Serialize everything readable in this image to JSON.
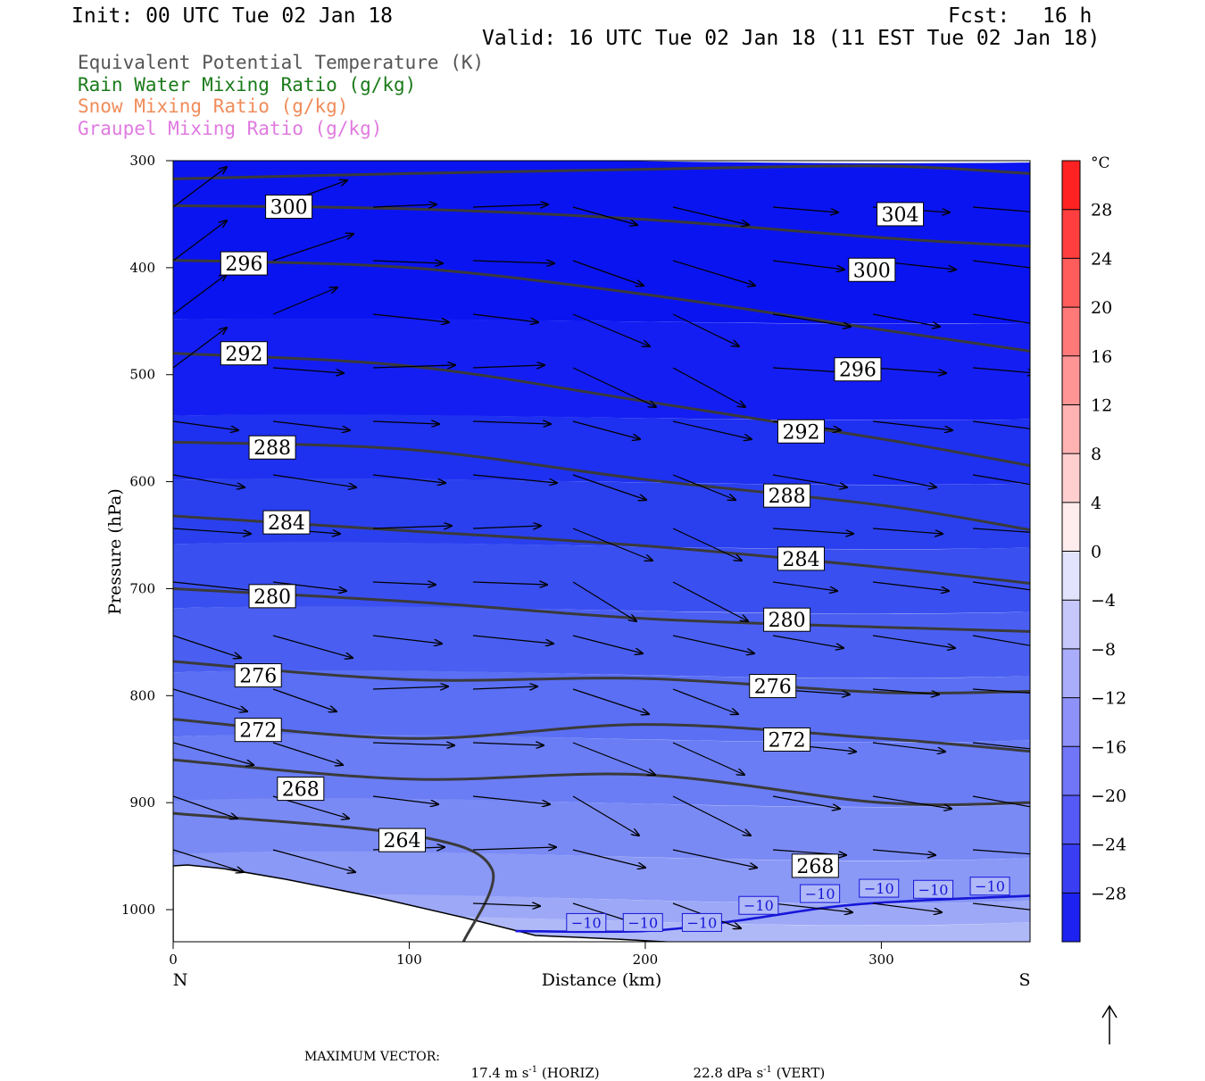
{
  "header": {
    "init": "Init: 00 UTC Tue 02 Jan 18",
    "fcst_label": "Fcst:",
    "fcst_value": "16 h",
    "valid": "Valid: 16 UTC Tue 02 Jan 18 (11 EST Tue 02 Jan 18)"
  },
  "legend": [
    {
      "text": "Equivalent Potential Temperature (K)",
      "color": "#555555"
    },
    {
      "text": "Rain Water Mixing Ratio (g/kg)",
      "color": "#1a7a1a"
    },
    {
      "text": "Snow Mixing Ratio (g/kg)",
      "color": "#f08c5a"
    },
    {
      "text": "Graupel Mixing Ratio (g/kg)",
      "color": "#e07ae0"
    }
  ],
  "chart_data": {
    "type": "cross-section",
    "xlabel": "Distance (km)",
    "ylabel": "Pressure (hPa)",
    "xlim": [
      0,
      363
    ],
    "ylim": [
      300,
      1030
    ],
    "xticks": [
      0,
      100,
      200,
      300
    ],
    "yticks": [
      300,
      400,
      500,
      600,
      700,
      800,
      900,
      1000
    ],
    "x_end_labels": {
      "left": "N",
      "right": "S"
    },
    "theta_e_contours": [
      {
        "value": 304,
        "points": [
          [
            0,
            317
          ],
          [
            100,
            312
          ],
          [
            200,
            308
          ],
          [
            300,
            305
          ],
          [
            363,
            312
          ]
        ],
        "labels": [
          [
            308,
            350
          ]
        ]
      },
      {
        "value": 300,
        "points": [
          [
            0,
            342
          ],
          [
            100,
            345
          ],
          [
            200,
            355
          ],
          [
            300,
            372
          ],
          [
            363,
            380
          ]
        ],
        "labels": [
          [
            49,
            343
          ],
          [
            296,
            402
          ]
        ]
      },
      {
        "value": 296,
        "points": [
          [
            0,
            393
          ],
          [
            100,
            400
          ],
          [
            200,
            425
          ],
          [
            300,
            458
          ],
          [
            363,
            478
          ]
        ],
        "labels": [
          [
            30,
            396
          ],
          [
            290,
            495
          ]
        ]
      },
      {
        "value": 292,
        "points": [
          [
            0,
            480
          ],
          [
            100,
            492
          ],
          [
            200,
            525
          ],
          [
            300,
            560
          ],
          [
            363,
            585
          ]
        ],
        "labels": [
          [
            30,
            480
          ],
          [
            266,
            553
          ]
        ]
      },
      {
        "value": 288,
        "points": [
          [
            0,
            563
          ],
          [
            100,
            570
          ],
          [
            200,
            598
          ],
          [
            300,
            622
          ],
          [
            363,
            645
          ]
        ],
        "labels": [
          [
            42,
            568
          ],
          [
            260,
            613
          ]
        ]
      },
      {
        "value": 284,
        "points": [
          [
            0,
            632
          ],
          [
            100,
            646
          ],
          [
            200,
            660
          ],
          [
            300,
            680
          ],
          [
            363,
            695
          ]
        ],
        "labels": [
          [
            48,
            638
          ],
          [
            266,
            672
          ]
        ]
      },
      {
        "value": 280,
        "points": [
          [
            0,
            700
          ],
          [
            100,
            712
          ],
          [
            200,
            728
          ],
          [
            300,
            736
          ],
          [
            363,
            740
          ]
        ],
        "labels": [
          [
            42,
            707
          ],
          [
            260,
            729
          ]
        ]
      },
      {
        "value": 276,
        "points": [
          [
            0,
            768
          ],
          [
            100,
            785
          ],
          [
            200,
            784
          ],
          [
            300,
            797
          ],
          [
            363,
            796
          ]
        ],
        "labels": [
          [
            36,
            781
          ],
          [
            254,
            791
          ]
        ]
      },
      {
        "value": 272,
        "points": [
          [
            0,
            822
          ],
          [
            100,
            840
          ],
          [
            200,
            827
          ],
          [
            300,
            840
          ],
          [
            363,
            852
          ]
        ],
        "labels": [
          [
            36,
            832
          ],
          [
            260,
            841
          ]
        ]
      },
      {
        "value": 268,
        "points": [
          [
            0,
            860
          ],
          [
            100,
            878
          ],
          [
            200,
            874
          ],
          [
            300,
            900
          ],
          [
            363,
            900
          ]
        ],
        "labels": [
          [
            54,
            887
          ],
          [
            272,
            959
          ]
        ]
      },
      {
        "value": 264,
        "points": [
          [
            0,
            910
          ],
          [
            100,
            930
          ],
          [
            135,
            962
          ],
          [
            123,
            1030
          ]
        ],
        "labels": [
          [
            97,
            935
          ]
        ]
      }
    ],
    "temperature_contours": [
      {
        "value": -10,
        "points": [
          [
            145,
            1020
          ],
          [
            200,
            1020
          ],
          [
            240,
            1010
          ],
          [
            290,
            995
          ],
          [
            363,
            987
          ]
        ],
        "labels": [
          [
            175,
            1012
          ],
          [
            199,
            1012
          ],
          [
            224,
            1012
          ],
          [
            248,
            996
          ],
          [
            274,
            985
          ],
          [
            299,
            980
          ],
          [
            322,
            981
          ],
          [
            346,
            978
          ]
        ]
      }
    ],
    "label_text": {
      "theta_e": [
        "304",
        "300",
        "296",
        "292",
        "288",
        "284",
        "280",
        "276",
        "272",
        "268",
        "264"
      ],
      "temp": "−10"
    },
    "colorbar": {
      "unit": "°C",
      "tick_labels": [
        "28",
        "24",
        "20",
        "16",
        "12",
        "8",
        "4",
        "0",
        "−4",
        "−8",
        "−12",
        "−16",
        "−20",
        "−24",
        "−28"
      ],
      "tick_values": [
        28,
        24,
        20,
        16,
        12,
        8,
        4,
        0,
        -4,
        -8,
        -12,
        -16,
        -20,
        -24,
        -28
      ],
      "range": [
        -32,
        32
      ]
    },
    "temperature_field_note": "shaded blue, colder aloft"
  },
  "footer": {
    "label": "MAXIMUM VECTOR:",
    "horiz": "17.4 m s",
    "horiz_sup": "-1",
    "horiz_unit": " (HORIZ)",
    "vert": "22.8 dPa s",
    "vert_sup": "-1",
    "vert_unit": " (VERT)"
  }
}
